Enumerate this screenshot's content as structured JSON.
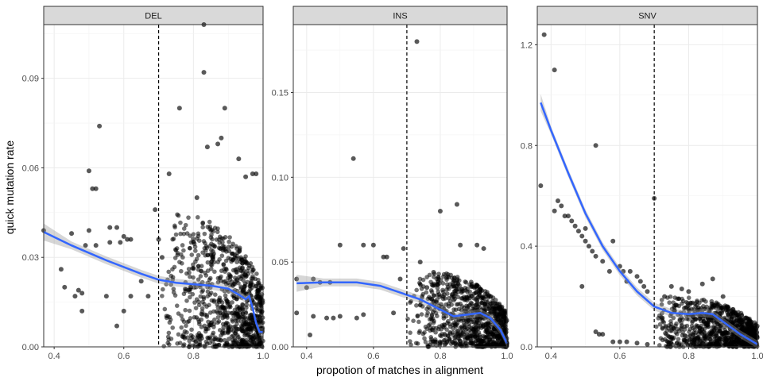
{
  "figure": {
    "xlabel": "propotion of matches in alignment",
    "ylabel": "quick mutation rate"
  },
  "chart_data": [
    {
      "type": "scatter",
      "panel": "DEL",
      "xlim": [
        0.37,
        1.0
      ],
      "ylim": [
        0,
        0.108
      ],
      "x_ticks": [
        0.4,
        0.6,
        0.8,
        1.0
      ],
      "x_tick_labels": [
        "0.4",
        "0.6",
        "0.8",
        "1.0"
      ],
      "y_ticks": [
        0.0,
        0.03,
        0.06,
        0.09
      ],
      "y_tick_labels": [
        "0.00",
        "0.03",
        "0.06",
        "0.09"
      ],
      "vline": 0.7,
      "grid": true,
      "points": [
        [
          0.37,
          0.039
        ],
        [
          0.42,
          0.026
        ],
        [
          0.43,
          0.02
        ],
        [
          0.45,
          0.038
        ],
        [
          0.46,
          0.017
        ],
        [
          0.47,
          0.019
        ],
        [
          0.48,
          0.018
        ],
        [
          0.49,
          0.034
        ],
        [
          0.5,
          0.059
        ],
        [
          0.51,
          0.053
        ],
        [
          0.52,
          0.053
        ],
        [
          0.53,
          0.074
        ],
        [
          0.52,
          0.034
        ],
        [
          0.56,
          0.04
        ],
        [
          0.58,
          0.04
        ],
        [
          0.56,
          0.035
        ],
        [
          0.59,
          0.035
        ],
        [
          0.6,
          0.037
        ],
        [
          0.61,
          0.036
        ],
        [
          0.62,
          0.036
        ],
        [
          0.5,
          0.039
        ],
        [
          0.55,
          0.017
        ],
        [
          0.48,
          0.012
        ],
        [
          0.58,
          0.007
        ],
        [
          0.69,
          0.046
        ],
        [
          0.7,
          0.036
        ],
        [
          0.71,
          0.03
        ],
        [
          0.73,
          0.058
        ],
        [
          0.76,
          0.08
        ],
        [
          0.81,
          0.05
        ],
        [
          0.83,
          0.108
        ],
        [
          0.83,
          0.092
        ],
        [
          0.84,
          0.067
        ],
        [
          0.87,
          0.068
        ],
        [
          0.88,
          0.07
        ],
        [
          0.89,
          0.08
        ],
        [
          0.93,
          0.063
        ],
        [
          0.95,
          0.057
        ],
        [
          0.97,
          0.058
        ],
        [
          0.98,
          0.058
        ],
        [
          0.65,
          0.022
        ],
        [
          0.67,
          0.017
        ],
        [
          0.62,
          0.017
        ],
        [
          0.6,
          0.012
        ]
      ],
      "dense_region": {
        "x": [
          0.7,
          1.0
        ],
        "y": [
          0.0,
          0.045
        ]
      },
      "smooth": [
        [
          0.37,
          0.0385
        ],
        [
          0.45,
          0.034
        ],
        [
          0.55,
          0.029
        ],
        [
          0.65,
          0.0245
        ],
        [
          0.7,
          0.0225
        ],
        [
          0.75,
          0.0215
        ],
        [
          0.8,
          0.021
        ],
        [
          0.85,
          0.0205
        ],
        [
          0.9,
          0.0195
        ],
        [
          0.93,
          0.0175
        ],
        [
          0.95,
          0.016
        ],
        [
          0.96,
          0.017
        ],
        [
          0.97,
          0.013
        ],
        [
          0.98,
          0.008
        ],
        [
          0.99,
          0.005
        ],
        [
          1.0,
          0.005
        ]
      ]
    },
    {
      "type": "scatter",
      "panel": "INS",
      "xlim": [
        0.36,
        1.0
      ],
      "ylim": [
        0,
        0.19
      ],
      "x_ticks": [
        0.4,
        0.6,
        0.8,
        1.0
      ],
      "x_tick_labels": [
        "0.4",
        "0.6",
        "0.8",
        "1.0"
      ],
      "y_ticks": [
        0.0,
        0.05,
        0.1,
        0.15
      ],
      "y_tick_labels": [
        "0.00",
        "0.05",
        "0.10",
        "0.15"
      ],
      "vline": 0.7,
      "grid": true,
      "points": [
        [
          0.37,
          0.04
        ],
        [
          0.37,
          0.02
        ],
        [
          0.4,
          0.035
        ],
        [
          0.41,
          0.007
        ],
        [
          0.42,
          0.04
        ],
        [
          0.44,
          0.038
        ],
        [
          0.46,
          0.017
        ],
        [
          0.47,
          0.038
        ],
        [
          0.48,
          0.017
        ],
        [
          0.5,
          0.06
        ],
        [
          0.54,
          0.111
        ],
        [
          0.55,
          0.017
        ],
        [
          0.57,
          0.06
        ],
        [
          0.6,
          0.06
        ],
        [
          0.63,
          0.053
        ],
        [
          0.64,
          0.053
        ],
        [
          0.68,
          0.04
        ],
        [
          0.69,
          0.058
        ],
        [
          0.73,
          0.18
        ],
        [
          0.78,
          0.044
        ],
        [
          0.8,
          0.08
        ],
        [
          0.85,
          0.084
        ],
        [
          0.86,
          0.06
        ],
        [
          0.91,
          0.06
        ],
        [
          0.93,
          0.058
        ],
        [
          0.76,
          0.035
        ],
        [
          0.74,
          0.05
        ],
        [
          0.42,
          0.018
        ],
        [
          0.5,
          0.018
        ],
        [
          0.57,
          0.019
        ],
        [
          0.66,
          0.02
        ]
      ],
      "dense_region": {
        "x": [
          0.7,
          1.0
        ],
        "y": [
          0.0,
          0.045
        ]
      },
      "smooth": [
        [
          0.37,
          0.0375
        ],
        [
          0.45,
          0.038
        ],
        [
          0.55,
          0.038
        ],
        [
          0.62,
          0.036
        ],
        [
          0.68,
          0.032
        ],
        [
          0.74,
          0.028
        ],
        [
          0.8,
          0.022
        ],
        [
          0.84,
          0.018
        ],
        [
          0.88,
          0.019
        ],
        [
          0.92,
          0.02
        ],
        [
          0.95,
          0.017
        ],
        [
          0.98,
          0.01
        ],
        [
          1.0,
          0.002
        ]
      ]
    },
    {
      "type": "scatter",
      "panel": "SNV",
      "xlim": [
        0.36,
        1.0
      ],
      "ylim": [
        0,
        1.28
      ],
      "x_ticks": [
        0.4,
        0.6,
        0.8,
        1.0
      ],
      "x_tick_labels": [
        "0.4",
        "0.6",
        "0.8",
        "1.0"
      ],
      "y_ticks": [
        0.0,
        0.4,
        0.8,
        1.2
      ],
      "y_tick_labels": [
        "0.0",
        "0.4",
        "0.8",
        "1.2"
      ],
      "vline": 0.7,
      "grid": true,
      "points": [
        [
          0.37,
          0.64
        ],
        [
          0.38,
          1.24
        ],
        [
          0.41,
          1.1
        ],
        [
          0.41,
          0.54
        ],
        [
          0.42,
          0.58
        ],
        [
          0.43,
          0.56
        ],
        [
          0.44,
          0.52
        ],
        [
          0.45,
          0.52
        ],
        [
          0.46,
          0.5
        ],
        [
          0.47,
          0.48
        ],
        [
          0.48,
          0.46
        ],
        [
          0.49,
          0.44
        ],
        [
          0.49,
          0.24
        ],
        [
          0.5,
          0.47
        ],
        [
          0.5,
          0.42
        ],
        [
          0.51,
          0.4
        ],
        [
          0.52,
          0.38
        ],
        [
          0.53,
          0.36
        ],
        [
          0.53,
          0.8
        ],
        [
          0.55,
          0.34
        ],
        [
          0.57,
          0.3
        ],
        [
          0.58,
          0.42
        ],
        [
          0.6,
          0.32
        ],
        [
          0.61,
          0.3
        ],
        [
          0.62,
          0.26
        ],
        [
          0.63,
          0.3
        ],
        [
          0.65,
          0.28
        ],
        [
          0.66,
          0.26
        ],
        [
          0.67,
          0.24
        ],
        [
          0.68,
          0.22
        ],
        [
          0.7,
          0.59
        ],
        [
          0.53,
          0.06
        ],
        [
          0.54,
          0.05
        ],
        [
          0.55,
          0.05
        ],
        [
          0.58,
          0.02
        ],
        [
          0.6,
          0.02
        ],
        [
          0.62,
          0.02
        ],
        [
          0.65,
          0.015
        ],
        [
          0.68,
          0.01
        ],
        [
          0.73,
          0.2
        ],
        [
          0.75,
          0.24
        ],
        [
          0.78,
          0.23
        ],
        [
          0.8,
          0.22
        ],
        [
          0.84,
          0.25
        ],
        [
          0.87,
          0.27
        ],
        [
          0.9,
          0.2
        ],
        [
          0.95,
          0.1
        ],
        [
          0.98,
          0.05
        ]
      ],
      "dense_region": {
        "x": [
          0.7,
          1.0
        ],
        "y": [
          0.0,
          0.2
        ]
      },
      "smooth": [
        [
          0.37,
          0.97
        ],
        [
          0.4,
          0.86
        ],
        [
          0.45,
          0.69
        ],
        [
          0.5,
          0.53
        ],
        [
          0.55,
          0.4
        ],
        [
          0.6,
          0.3
        ],
        [
          0.65,
          0.22
        ],
        [
          0.7,
          0.16
        ],
        [
          0.75,
          0.135
        ],
        [
          0.8,
          0.13
        ],
        [
          0.84,
          0.135
        ],
        [
          0.87,
          0.13
        ],
        [
          0.9,
          0.1
        ],
        [
          0.95,
          0.05
        ],
        [
          1.0,
          0.01
        ]
      ]
    }
  ]
}
